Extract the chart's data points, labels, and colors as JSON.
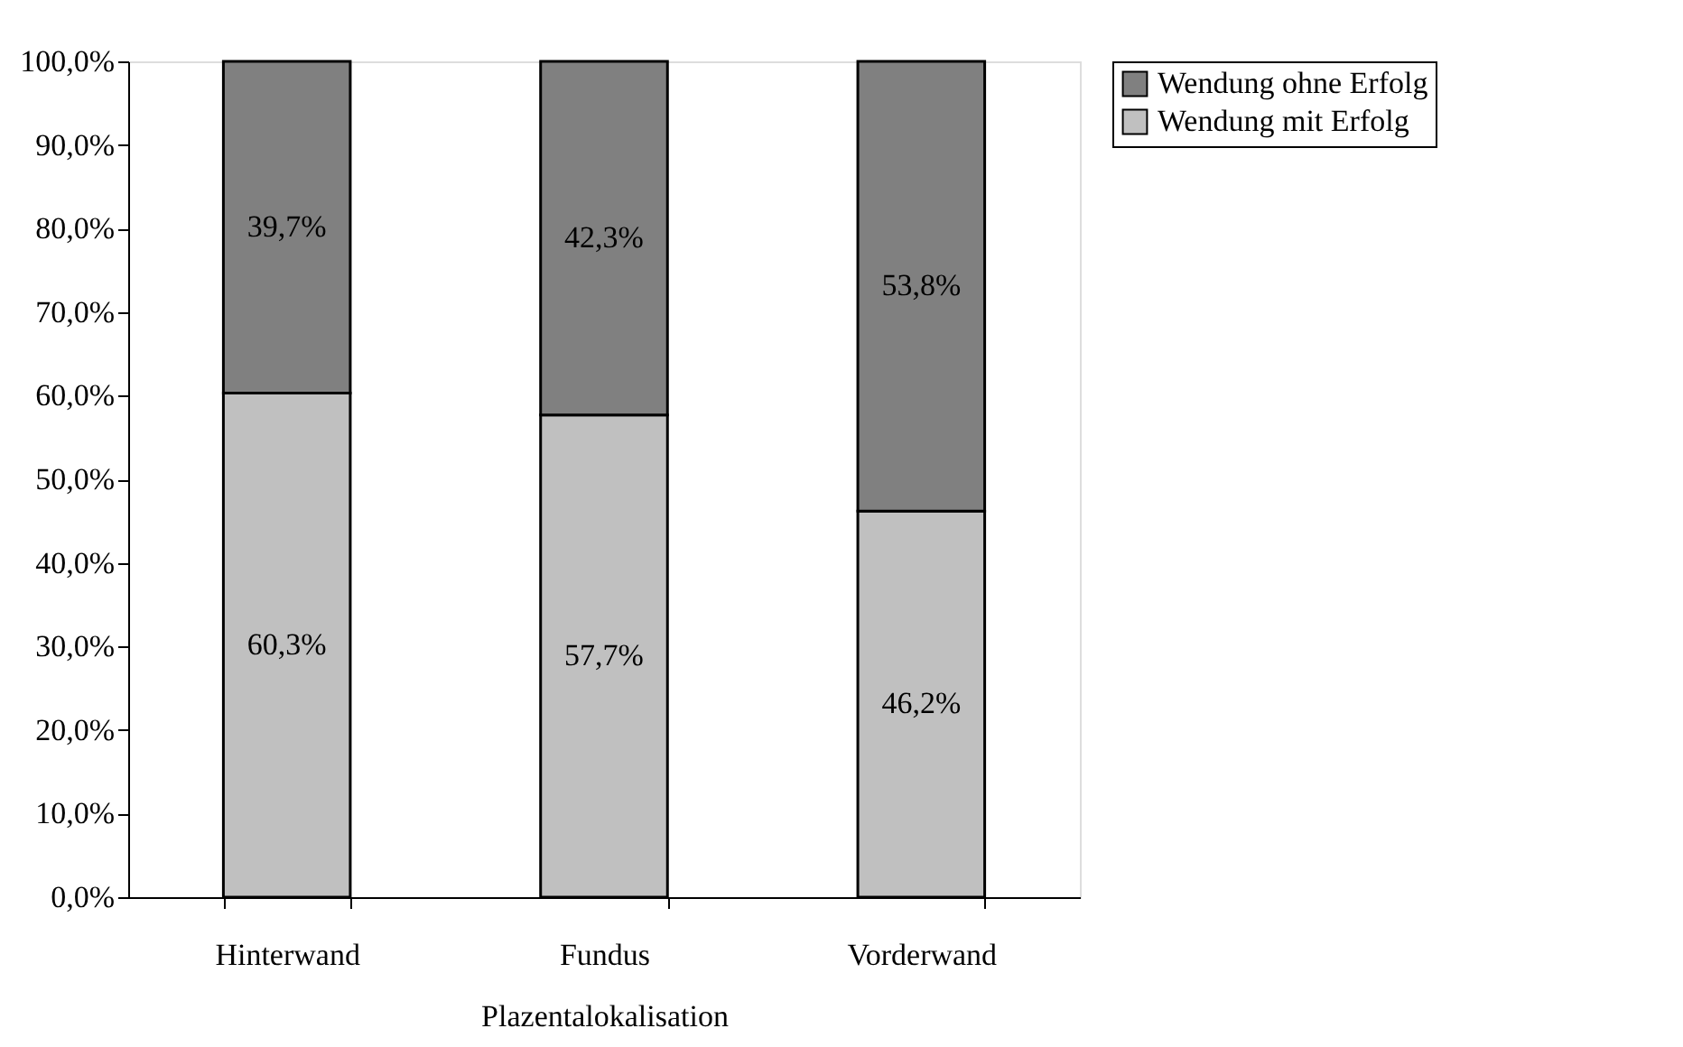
{
  "chart_data": {
    "type": "bar",
    "stacked": true,
    "xlabel": "Plazentalokalisation",
    "categories": [
      "Hinterwand",
      "Fundus",
      "Vorderwand"
    ],
    "series": [
      {
        "name": "Wendung mit Erfolg",
        "color": "#c0c0c0",
        "values": [
          60.3,
          57.7,
          46.2
        ],
        "value_labels": [
          "60,3%",
          "57,7%",
          "46,2%"
        ]
      },
      {
        "name": "Wendung ohne Erfolg",
        "color": "#808080",
        "values": [
          39.7,
          42.3,
          53.8
        ],
        "value_labels": [
          "39,7%",
          "42,3%",
          "53,8%"
        ]
      }
    ],
    "ylim": [
      0,
      100
    ],
    "yticks": [
      {
        "value": 0,
        "label": "0,0%"
      },
      {
        "value": 10,
        "label": "10,0%"
      },
      {
        "value": 20,
        "label": "20,0%"
      },
      {
        "value": 30,
        "label": "30,0%"
      },
      {
        "value": 40,
        "label": "40,0%"
      },
      {
        "value": 50,
        "label": "50,0%"
      },
      {
        "value": 60,
        "label": "60,0%"
      },
      {
        "value": 70,
        "label": "70,0%"
      },
      {
        "value": 80,
        "label": "80,0%"
      },
      {
        "value": 90,
        "label": "90,0%"
      },
      {
        "value": 100,
        "label": "100,0%"
      }
    ],
    "grid": false,
    "legend": "right"
  }
}
